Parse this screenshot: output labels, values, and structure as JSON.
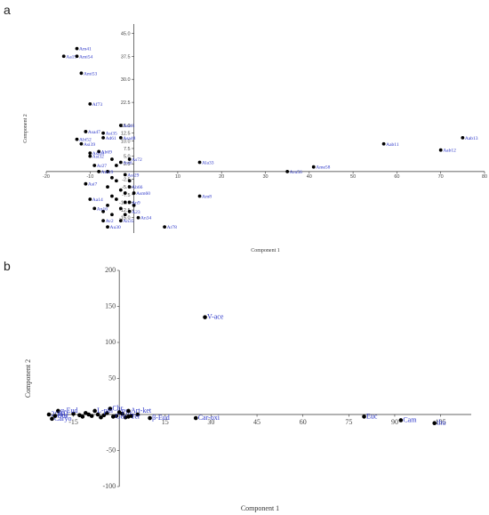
{
  "panels": {
    "a": "a",
    "b": "b"
  },
  "colors": {
    "label": "#2a35c8",
    "point": "#000000",
    "axis": "#333333"
  },
  "chart_data": [
    {
      "type": "scatter",
      "title": "",
      "xlabel": "Component 1",
      "ylabel": "Component 2",
      "xlim": [
        -20,
        80
      ],
      "ylim": [
        -20,
        48
      ],
      "xticks": [
        -20,
        -10,
        10,
        20,
        30,
        40,
        50,
        60,
        70,
        80
      ],
      "yticks": [
        -15.0,
        -12.5,
        -10.0,
        -7.5,
        -5.0,
        -2.5,
        2.5,
        5.0,
        7.5,
        10.0,
        12.5,
        15.0,
        22.5,
        30.0,
        37.5,
        45.0
      ],
      "grid": false,
      "points": [
        {
          "label": "Am41",
          "x": -13,
          "y": 40
        },
        {
          "label": "Aa15",
          "x": -16,
          "y": 37.5
        },
        {
          "label": "Ami54",
          "x": -13,
          "y": 37.5
        },
        {
          "label": "Ami53",
          "x": -12,
          "y": 32
        },
        {
          "label": "Af73",
          "x": -10,
          "y": 22
        },
        {
          "label": "Asi43",
          "x": -3,
          "y": 15
        },
        {
          "label": "Asa47",
          "x": -11,
          "y": 13
        },
        {
          "label": "Asi35",
          "x": -7,
          "y": 12.5
        },
        {
          "label": "Abi52",
          "x": -13,
          "y": 10.5
        },
        {
          "label": "Ad61",
          "x": -7,
          "y": 11
        },
        {
          "label": "Asa48",
          "x": -3,
          "y": 11
        },
        {
          "label": "Asi39",
          "x": -12,
          "y": 9
        },
        {
          "label": "Ab69",
          "x": -8,
          "y": 6.5
        },
        {
          "label": "Asi18",
          "x": -10,
          "y": 6
        },
        {
          "label": "Asi32",
          "x": -10,
          "y": 5
        },
        {
          "label": "As72",
          "x": -1,
          "y": 4
        },
        {
          "label": "Asi6",
          "x": -3,
          "y": 3
        },
        {
          "label": "Ar27",
          "x": -9,
          "y": 2
        },
        {
          "label": "Am19",
          "x": -8,
          "y": 0
        },
        {
          "label": "Asi29",
          "x": -2,
          "y": -1
        },
        {
          "label": "Asi7",
          "x": -11,
          "y": -4
        },
        {
          "label": "Ab66",
          "x": -1,
          "y": -5
        },
        {
          "label": "Asm60",
          "x": 0,
          "y": -7
        },
        {
          "label": "Aa14",
          "x": -10,
          "y": -9
        },
        {
          "label": "An9",
          "x": -1,
          "y": -10
        },
        {
          "label": "An16",
          "x": -9,
          "y": -12
        },
        {
          "label": "A23",
          "x": -1,
          "y": -13
        },
        {
          "label": "An34",
          "x": 1,
          "y": -15
        },
        {
          "label": "Av2",
          "x": -7,
          "y": -16
        },
        {
          "label": "An35",
          "x": -3,
          "y": -16
        },
        {
          "label": "Au30",
          "x": -6,
          "y": -18
        },
        {
          "label": "Ar78",
          "x": 7,
          "y": -18
        },
        {
          "label": "Ala33",
          "x": 15,
          "y": 3
        },
        {
          "label": "Am8",
          "x": 15,
          "y": -8
        },
        {
          "label": "Aru56",
          "x": 35,
          "y": 0
        },
        {
          "label": "Ame58",
          "x": 41,
          "y": 1.5
        },
        {
          "label": "Aab11",
          "x": 57,
          "y": 9
        },
        {
          "label": "Aab12",
          "x": 70,
          "y": 7
        },
        {
          "label": "Aab13",
          "x": 75,
          "y": 11
        }
      ],
      "unlabeled_points": [
        {
          "x": -5,
          "y": 4
        },
        {
          "x": -4,
          "y": 2
        },
        {
          "x": -6,
          "y": 0
        },
        {
          "x": -5,
          "y": -2
        },
        {
          "x": -4,
          "y": -3
        },
        {
          "x": -6,
          "y": -5
        },
        {
          "x": -3,
          "y": -6
        },
        {
          "x": -5,
          "y": -8
        },
        {
          "x": -4,
          "y": -9
        },
        {
          "x": -2,
          "y": -10
        },
        {
          "x": -6,
          "y": -11
        },
        {
          "x": -3,
          "y": -12
        },
        {
          "x": -2,
          "y": -14
        },
        {
          "x": -5,
          "y": -14
        },
        {
          "x": -1,
          "y": -3
        },
        {
          "x": -2,
          "y": -7
        },
        {
          "x": -7,
          "y": -13
        },
        {
          "x": 0,
          "y": -11
        }
      ]
    },
    {
      "type": "scatter",
      "title": "",
      "xlabel": "Component 1",
      "ylabel": "Component 2",
      "xlim": [
        -23,
        115
      ],
      "ylim": [
        -100,
        200
      ],
      "xticks": [
        -15,
        15,
        30,
        45,
        60,
        75,
        90,
        105
      ],
      "yticks": [
        -100,
        -50,
        50,
        100,
        150,
        200
      ],
      "grid": false,
      "points": [
        {
          "label": "V-ace",
          "x": 28,
          "y": 135
        },
        {
          "label": "Car-oxi",
          "x": 25,
          "y": -5
        },
        {
          "label": "β-Eud",
          "x": 10,
          "y": -5
        },
        {
          "label": "Euc",
          "x": 80,
          "y": -3
        },
        {
          "label": "Cam",
          "x": 92,
          "y": -8
        },
        {
          "label": "thu",
          "x": 103,
          "y": -12
        },
        {
          "label": "Chr",
          "x": -3,
          "y": 8
        },
        {
          "label": "L-pin",
          "x": -8,
          "y": 5
        },
        {
          "label": "Pin",
          "x": 0,
          "y": 3
        },
        {
          "label": "Art-ket",
          "x": 3,
          "y": 5
        },
        {
          "label": "α-Eud",
          "x": -20,
          "y": 5
        },
        {
          "label": "2(3H)",
          "x": -23,
          "y": 0
        },
        {
          "label": "Caryo",
          "x": -22,
          "y": -6
        },
        {
          "label": "Bor",
          "x": -21,
          "y": -2
        },
        {
          "label": "Ger",
          "x": -2,
          "y": -3
        },
        {
          "label": "Ter",
          "x": 3,
          "y": -3
        }
      ],
      "unlabeled_points": [
        {
          "x": -15,
          "y": 1
        },
        {
          "x": -13,
          "y": -1
        },
        {
          "x": -11,
          "y": 2
        },
        {
          "x": -9,
          "y": -2
        },
        {
          "x": -7,
          "y": 0
        },
        {
          "x": -5,
          "y": -1
        },
        {
          "x": -4,
          "y": 2
        },
        {
          "x": -1,
          "y": -2
        },
        {
          "x": 1,
          "y": 1
        },
        {
          "x": 4,
          "y": -2
        },
        {
          "x": 6,
          "y": 0
        },
        {
          "x": -12,
          "y": -3
        },
        {
          "x": -10,
          "y": 0
        },
        {
          "x": -6,
          "y": -4
        },
        {
          "x": 2,
          "y": -4
        }
      ]
    }
  ]
}
